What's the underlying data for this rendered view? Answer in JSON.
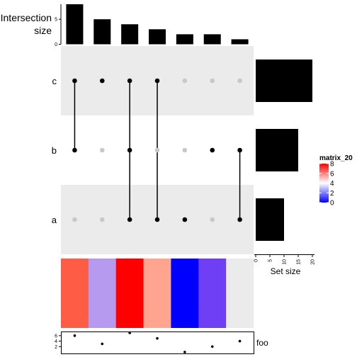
{
  "chart_data": {
    "type": "bar",
    "intersection_size": {
      "label_line1": "Intersection",
      "label_line2": "size",
      "ylim": [
        0,
        8
      ],
      "ticks": [
        0,
        5
      ],
      "values": [
        8,
        5,
        4,
        3,
        2,
        2,
        1
      ]
    },
    "sets": {
      "names": [
        "c",
        "b",
        "a"
      ],
      "membership": [
        [
          1,
          1,
          0
        ],
        [
          1,
          0,
          0
        ],
        [
          1,
          1,
          1
        ],
        [
          1,
          0,
          1
        ],
        [
          0,
          0,
          1
        ],
        [
          0,
          1,
          0
        ],
        [
          0,
          1,
          1
        ]
      ]
    },
    "set_size": {
      "xlabel": "Set size",
      "xlim": [
        0,
        20
      ],
      "ticks": [
        0,
        5,
        10,
        15,
        20
      ],
      "values": [
        20,
        15,
        10
      ]
    },
    "heatmap": {
      "legend_title": "matrix_20",
      "range": [
        0,
        8
      ],
      "legend_ticks": [
        0,
        2,
        4,
        6,
        8
      ],
      "values": [
        6.5,
        3,
        8,
        5.5,
        0,
        1.5,
        null
      ],
      "colors": [
        "#ff5c45",
        "#b59af0",
        "#ff0000",
        "#ffa58f",
        "#0000ff",
        "#6e3ff5",
        "#ebebeb"
      ]
    },
    "foo": {
      "label": "foo",
      "ylim": [
        0,
        7
      ],
      "ticks": [
        2,
        4,
        6
      ],
      "values": [
        6,
        3,
        7,
        5,
        0,
        2,
        4
      ]
    }
  },
  "colors": {
    "bar": "#000000",
    "band": "#ebebeb",
    "dot_active": "#000000",
    "dot_inactive": "#c8c8c8",
    "grad_low": "#0000ff",
    "grad_mid": "#ffffff",
    "grad_high": "#ff0000"
  }
}
